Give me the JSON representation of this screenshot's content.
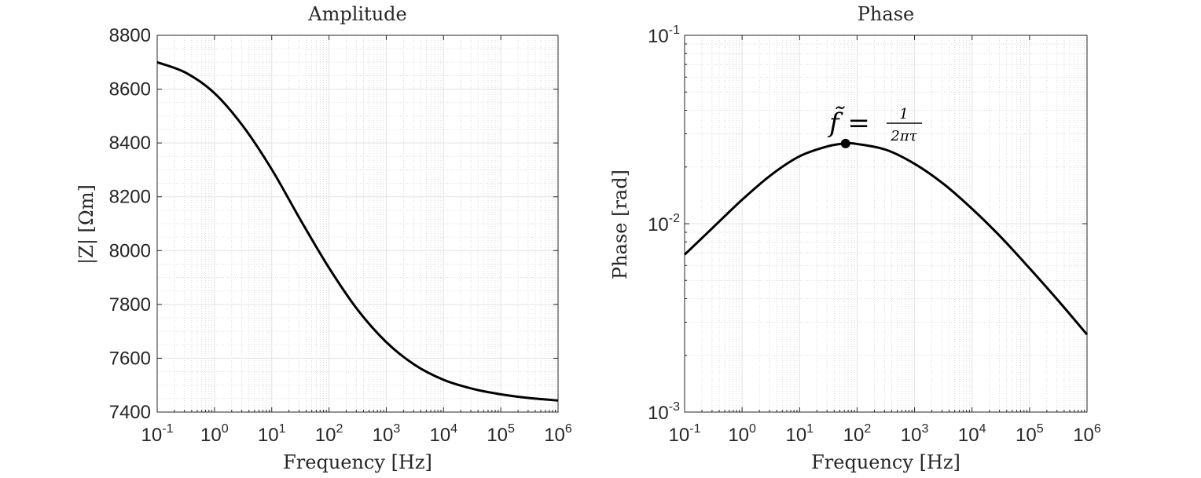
{
  "chart_data": [
    {
      "type": "line",
      "title": "Amplitude",
      "xlabel": "Frequency [Hz]",
      "ylabel": "|Z| [Ωm]",
      "xscale": "log",
      "yscale": "linear",
      "xlim": [
        0.1,
        1000000
      ],
      "ylim": [
        7400,
        8800
      ],
      "xticks": [
        {
          "base": "10",
          "exp": "-1"
        },
        {
          "base": "10",
          "exp": "0"
        },
        {
          "base": "10",
          "exp": "1"
        },
        {
          "base": "10",
          "exp": "2"
        },
        {
          "base": "10",
          "exp": "3"
        },
        {
          "base": "10",
          "exp": "4"
        },
        {
          "base": "10",
          "exp": "5"
        },
        {
          "base": "10",
          "exp": "6"
        }
      ],
      "yticks": [
        "7400",
        "7600",
        "7800",
        "8000",
        "8200",
        "8400",
        "8600",
        "8800"
      ],
      "grid": true,
      "color": "#000000",
      "series": [
        {
          "x": [
            0.1,
            0.3162,
            1,
            3.162,
            10,
            31.62,
            100,
            316.2,
            1000,
            3162,
            10000,
            31620,
            100000,
            316200,
            1000000
          ],
          "y": [
            8700,
            8661,
            8585,
            8462,
            8302,
            8115,
            7936,
            7780,
            7660,
            7575,
            7520,
            7487,
            7466,
            7452,
            7443
          ]
        }
      ]
    },
    {
      "type": "line",
      "title": "Phase",
      "xlabel": "Frequency [Hz]",
      "ylabel": "Phase [rad]",
      "xscale": "log",
      "yscale": "log",
      "xlim": [
        0.1,
        1000000
      ],
      "ylim": [
        0.001,
        0.1
      ],
      "xticks": [
        {
          "base": "10",
          "exp": "-1"
        },
        {
          "base": "10",
          "exp": "0"
        },
        {
          "base": "10",
          "exp": "1"
        },
        {
          "base": "10",
          "exp": "2"
        },
        {
          "base": "10",
          "exp": "3"
        },
        {
          "base": "10",
          "exp": "4"
        },
        {
          "base": "10",
          "exp": "5"
        },
        {
          "base": "10",
          "exp": "6"
        }
      ],
      "yticks": [
        {
          "base": "10",
          "exp": "-3"
        },
        {
          "base": "10",
          "exp": "-2"
        },
        {
          "base": "10",
          "exp": "-1"
        }
      ],
      "grid": true,
      "color": "#000000",
      "series": [
        {
          "x": [
            0.1,
            0.3162,
            1,
            3.162,
            10,
            31.62,
            63,
            100,
            316.2,
            1000,
            3162,
            10000,
            31620,
            100000,
            316200,
            1000000
          ],
          "y": [
            0.00685,
            0.00958,
            0.0134,
            0.0181,
            0.0228,
            0.0258,
            0.02665,
            0.0265,
            0.0247,
            0.0208,
            0.0163,
            0.012,
            0.0085,
            0.0058,
            0.0039,
            0.00258
          ]
        }
      ],
      "marker": {
        "x": 63,
        "y": 0.02665
      },
      "annotation": {
        "lhs": "f̃ =",
        "num": "1",
        "den": "2πτ"
      }
    }
  ]
}
